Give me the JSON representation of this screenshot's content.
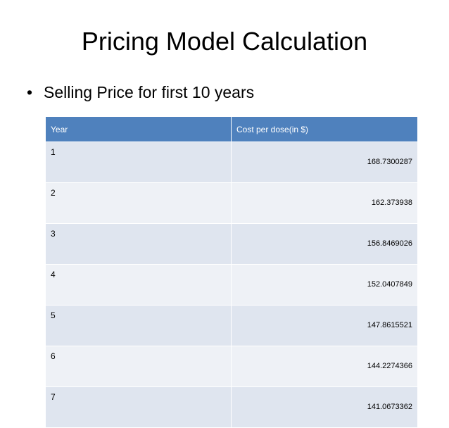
{
  "title": "Pricing Model Calculation",
  "bullet": "Selling Price for first 10 years",
  "table": {
    "columns": [
      "Year",
      "Cost per dose(in $)"
    ],
    "rows": [
      [
        "1",
        "168.7300287"
      ],
      [
        "2",
        "162.373938"
      ],
      [
        "3",
        "156.8469026"
      ],
      [
        "4",
        "152.0407849"
      ],
      [
        "5",
        "147.8615521"
      ],
      [
        "6",
        "144.2274366"
      ],
      [
        "7",
        "141.0673362"
      ]
    ]
  }
}
